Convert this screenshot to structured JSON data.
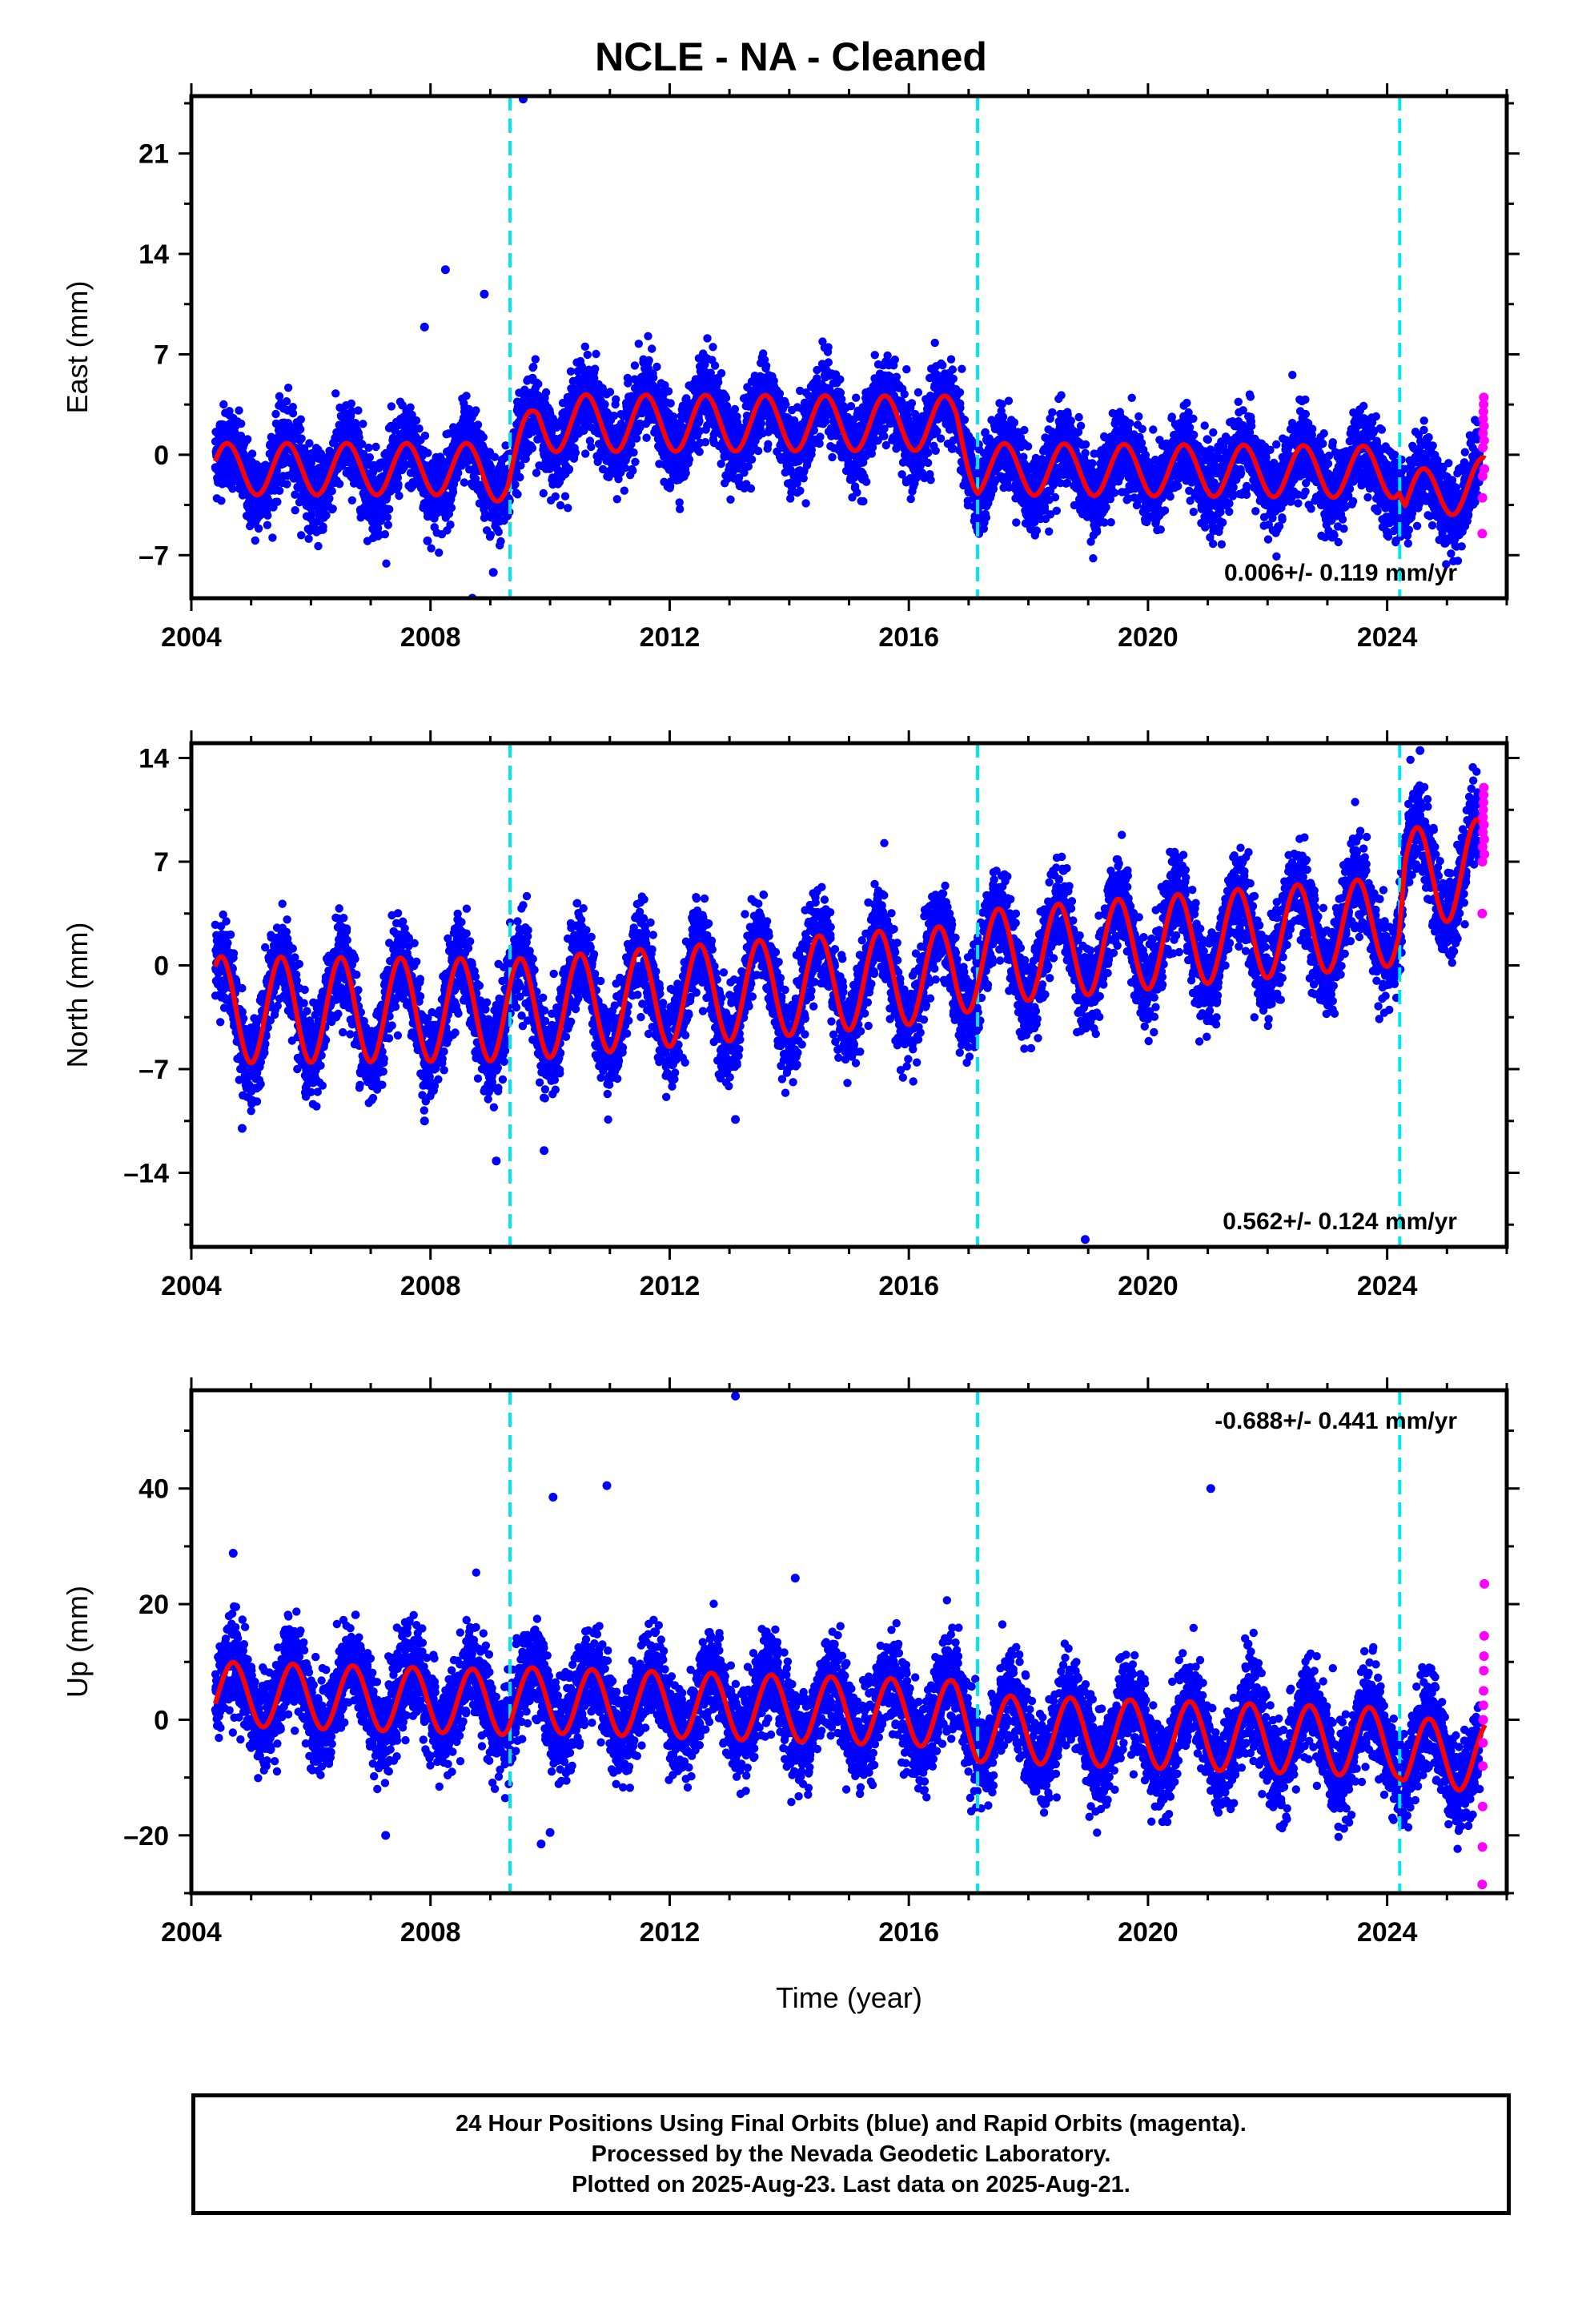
{
  "title": "NCLE  - NA - Cleaned",
  "footer": {
    "line1": "24 Hour Positions Using Final Orbits (blue) and Rapid Orbits (magenta).",
    "line2": "Processed by the Nevada Geodetic Laboratory.",
    "line3": "Plotted on 2025-Aug-23. Last data on 2025-Aug-21."
  },
  "colors": {
    "final_orbits": "#0000ff",
    "rapid_orbits": "#ff00ff",
    "model_fit": "#ff0000",
    "equipment_change": "#00e5ee"
  },
  "chart_data": [
    {
      "type": "scatter",
      "ylabel": "East (mm)",
      "xlabel": "",
      "xlim": [
        2004.0,
        2026.0
      ],
      "ylim": [
        -10,
        25
      ],
      "xticks": [
        "2004",
        "2008",
        "2012",
        "2016",
        "2020",
        "2024"
      ],
      "yticks": [
        "-7",
        "0",
        "7",
        "14",
        "21"
      ],
      "grid": false,
      "rate": "0.006+/- 0.119 mm/yr",
      "rate_position": "bottom-right",
      "vlines": [
        2009.33,
        2017.15,
        2024.21
      ],
      "model": {
        "mean": [
          [
            2004.4,
            -1.0
          ],
          [
            2008.8,
            -1.0
          ],
          [
            2009.3,
            -1.5
          ],
          [
            2009.8,
            2.2
          ],
          [
            2016.8,
            2.2
          ],
          [
            2017.15,
            -1.0
          ],
          [
            2024.2,
            -1.2
          ],
          [
            2024.3,
            -3.0
          ],
          [
            2025.6,
            -2.0
          ]
        ],
        "amplitude": [
          [
            2004.4,
            1.8
          ],
          [
            2008.8,
            1.8
          ],
          [
            2009.3,
            2.0
          ],
          [
            2016.8,
            1.9
          ],
          [
            2017.15,
            1.8
          ],
          [
            2025.6,
            1.8
          ]
        ],
        "peak_phase": 0.6
      },
      "scatter_sd": 1.4,
      "final_orbits": {
        "start": 2004.4,
        "end": 2025.55
      },
      "rapid_orbits": {
        "start": 2025.55,
        "end": 2025.64,
        "y": [
          -5.5,
          -3.0,
          -1.5,
          0.5,
          1.5,
          2.5,
          3.0,
          3.5,
          4.0,
          2.0,
          1.0,
          -1.0
        ]
      },
      "outliers": [
        [
          2009.55,
          24.8
        ],
        [
          2008.25,
          12.9
        ],
        [
          2008.9,
          11.2
        ],
        [
          2007.9,
          8.9
        ],
        [
          2008.7,
          -10.0
        ],
        [
          2009.05,
          -8.2
        ],
        [
          2007.95,
          -6.0
        ]
      ]
    },
    {
      "type": "scatter",
      "ylabel": "North (mm)",
      "xlabel": "",
      "xlim": [
        2004.0,
        2026.0
      ],
      "ylim": [
        -19,
        15
      ],
      "xticks": [
        "2004",
        "2008",
        "2012",
        "2016",
        "2020",
        "2024"
      ],
      "yticks": [
        "-14",
        "-7",
        "0",
        "7",
        "14"
      ],
      "grid": false,
      "rate": "0.562+/- 0.124 mm/yr",
      "rate_position": "bottom-right",
      "vlines": [
        2009.33,
        2017.15,
        2024.21
      ],
      "model": {
        "mean": [
          [
            2004.4,
            -3.0
          ],
          [
            2009.2,
            -3.0
          ],
          [
            2009.4,
            -3.0
          ],
          [
            2016.8,
            -0.5
          ],
          [
            2017.15,
            0.5
          ],
          [
            2024.2,
            3.0
          ],
          [
            2024.3,
            6.0
          ],
          [
            2025.6,
            6.5
          ]
        ],
        "amplitude": [
          [
            2004.4,
            3.6
          ],
          [
            2016.8,
            3.2
          ],
          [
            2017.15,
            3.2
          ],
          [
            2024.2,
            3.0
          ],
          [
            2024.3,
            3.2
          ],
          [
            2025.6,
            3.4
          ]
        ],
        "peak_phase": 0.5
      },
      "scatter_sd": 1.5,
      "final_orbits": {
        "start": 2004.4,
        "end": 2025.55
      },
      "rapid_orbits": {
        "start": 2025.55,
        "end": 2025.64,
        "y": [
          3.5,
          7.0,
          8.0,
          9.0,
          10.0,
          10.5,
          11.0,
          11.5,
          12.0,
          9.5,
          8.5,
          7.5
        ]
      },
      "outliers": [
        [
          2018.95,
          -18.5
        ],
        [
          2009.1,
          -13.2
        ],
        [
          2009.9,
          -12.5
        ],
        [
          2007.9,
          -10.5
        ],
        [
          2013.1,
          -10.4
        ],
        [
          2004.85,
          -11.0
        ],
        [
          2024.55,
          14.5
        ]
      ]
    },
    {
      "type": "scatter",
      "ylabel": "Up (mm)",
      "xlabel": "Time (year)",
      "xlim": [
        2004.0,
        2026.0
      ],
      "ylim": [
        -30,
        57
      ],
      "xticks": [
        "2004",
        "2008",
        "2012",
        "2016",
        "2020",
        "2024"
      ],
      "yticks": [
        "-20",
        "0",
        "20",
        "40"
      ],
      "grid": false,
      "rate": "-0.688+/- 0.441 mm/yr",
      "rate_position": "top-right",
      "vlines": [
        2009.33,
        2017.15,
        2024.21
      ],
      "model": {
        "mean": [
          [
            2004.4,
            4.5
          ],
          [
            2009.3,
            3.0
          ],
          [
            2009.4,
            3.5
          ],
          [
            2016.8,
            1.0
          ],
          [
            2017.15,
            -1.5
          ],
          [
            2024.2,
            -4.0
          ],
          [
            2024.3,
            -5.5
          ],
          [
            2025.6,
            -6.5
          ]
        ],
        "amplitude": [
          [
            2004.4,
            5.5
          ],
          [
            2025.6,
            6.0
          ]
        ],
        "peak_phase": 0.7
      },
      "scatter_sd": 4.0,
      "final_orbits": {
        "start": 2004.4,
        "end": 2025.55
      },
      "rapid_orbits": {
        "start": 2025.55,
        "end": 2025.64,
        "y": [
          -28.5,
          -22.0,
          -15.0,
          -8.0,
          -4.0,
          0.0,
          2.5,
          5.0,
          8.5,
          11.0,
          14.5,
          23.5
        ]
      },
      "outliers": [
        [
          2013.1,
          56.0
        ],
        [
          2010.05,
          38.5
        ],
        [
          2010.95,
          40.5
        ],
        [
          2021.05,
          40.0
        ],
        [
          2004.7,
          28.8
        ],
        [
          2009.85,
          -21.5
        ],
        [
          2010.0,
          -19.5
        ],
        [
          2007.25,
          -20.0
        ],
        [
          2014.1,
          24.5
        ]
      ]
    }
  ]
}
